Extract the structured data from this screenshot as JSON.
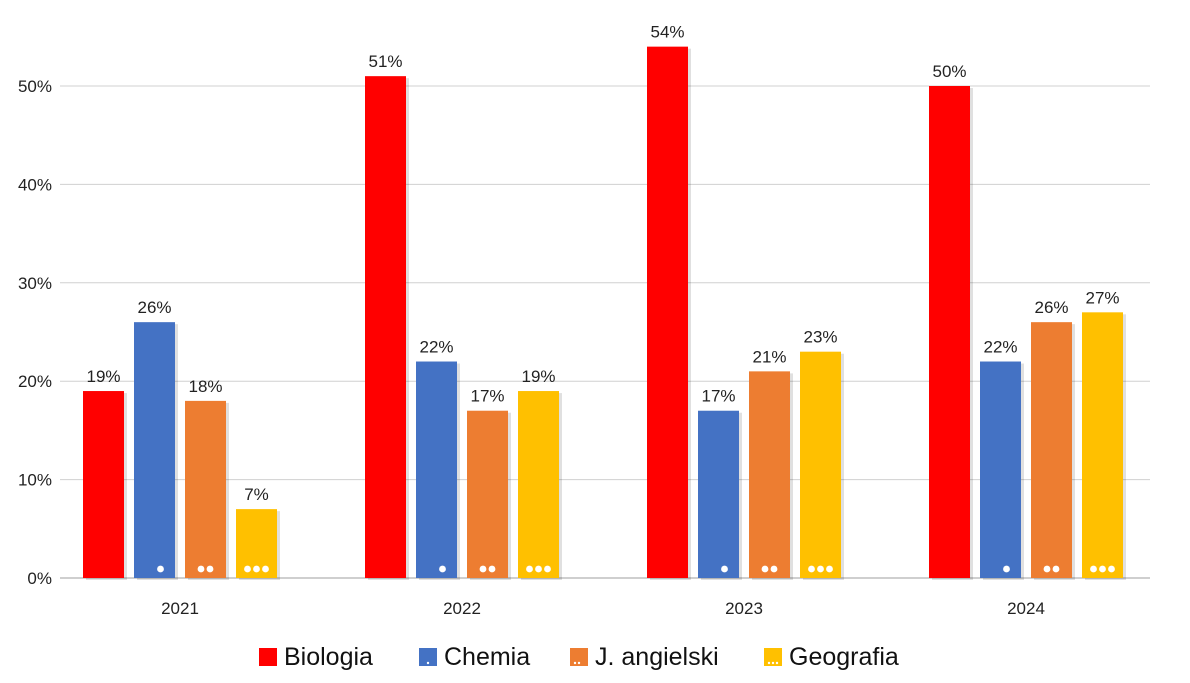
{
  "chart_data": {
    "type": "bar",
    "title": "",
    "xlabel": "",
    "ylabel": "",
    "categories": [
      "2021",
      "2022",
      "2023",
      "2024"
    ],
    "ylim": [
      0,
      55
    ],
    "yticks": [
      0,
      10,
      20,
      30,
      40,
      50
    ],
    "ytick_labels": [
      "0%",
      "10%",
      "20%",
      "30%",
      "40%",
      "50%"
    ],
    "grid": true,
    "legend_position": "bottom",
    "series": [
      {
        "name": "Biologia",
        "color": "#ff0000",
        "marker_dots": 0,
        "values": [
          19,
          51,
          54,
          50
        ],
        "labels": [
          "19%",
          "51%",
          "54%",
          "50%"
        ]
      },
      {
        "name": "Chemia",
        "color": "#4472c4",
        "marker_dots": 1,
        "values": [
          26,
          22,
          17,
          22
        ],
        "labels": [
          "26%",
          "22%",
          "17%",
          "22%"
        ]
      },
      {
        "name": "J. angielski",
        "color": "#ed7d31",
        "marker_dots": 2,
        "values": [
          18,
          17,
          21,
          26
        ],
        "labels": [
          "18%",
          "17%",
          "21%",
          "26%"
        ]
      },
      {
        "name": "Geografia",
        "color": "#ffc000",
        "marker_dots": 3,
        "values": [
          7,
          19,
          23,
          27
        ],
        "labels": [
          "7%",
          "19%",
          "23%",
          "27%"
        ]
      }
    ]
  }
}
